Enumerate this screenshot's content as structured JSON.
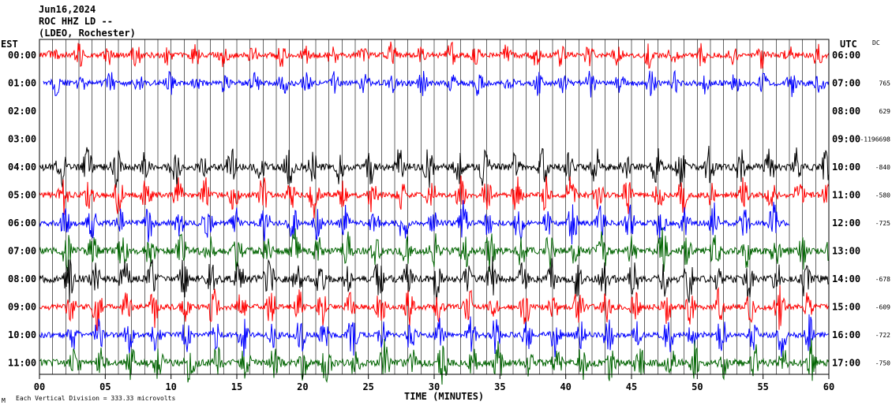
{
  "header": {
    "date": "Jun16,2024",
    "station": "ROC HHZ LD --",
    "network": "(LDEO, Rochester)"
  },
  "footer": {
    "scale_text": "Each Vertical Division =  333.33 microvolts",
    "mark": "M"
  },
  "colors": {
    "red": "#ff0000",
    "blue": "#0000ff",
    "black": "#000000",
    "green": "#006400"
  },
  "chart_data": {
    "type": "line",
    "title": "",
    "xlabel": "TIME (MINUTES)",
    "ylabel_left": "EST",
    "ylabel_right": "UTC",
    "dc_label": "DC",
    "xlim": [
      0,
      60
    ],
    "x_ticks": [
      "00",
      "05",
      "10",
      "15",
      "20",
      "25",
      "30",
      "35",
      "40",
      "45",
      "50",
      "55",
      "60"
    ],
    "grid": true,
    "rows": [
      {
        "est": "00:00",
        "utc": "06:00",
        "dc": "",
        "color": "red"
      },
      {
        "est": "01:00",
        "utc": "07:00",
        "dc": "765",
        "color": "blue"
      },
      {
        "est": "02:00",
        "utc": "08:00",
        "dc": "629",
        "color": "none"
      },
      {
        "est": "03:00",
        "utc": "09:00",
        "dc": "-1196698",
        "color": "none"
      },
      {
        "est": "04:00",
        "utc": "10:00",
        "dc": "-840",
        "color": "black"
      },
      {
        "est": "05:00",
        "utc": "11:00",
        "dc": "-580",
        "color": "red"
      },
      {
        "est": "06:00",
        "utc": "12:00",
        "dc": "-725",
        "color": "blue"
      },
      {
        "est": "07:00",
        "utc": "13:00",
        "dc": "",
        "color": "green"
      },
      {
        "est": "08:00",
        "utc": "14:00",
        "dc": "-678",
        "color": "black"
      },
      {
        "est": "09:00",
        "utc": "15:00",
        "dc": "-609",
        "color": "red"
      },
      {
        "est": "10:00",
        "utc": "16:00",
        "dc": "-722",
        "color": "blue"
      },
      {
        "est": "11:00",
        "utc": "17:00",
        "dc": "-750",
        "color": "green"
      }
    ]
  }
}
